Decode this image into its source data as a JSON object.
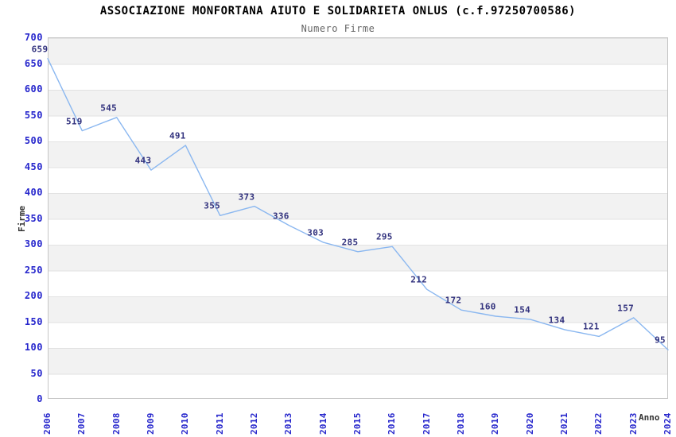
{
  "chart_data": {
    "type": "line",
    "title": "ASSOCIAZIONE MONFORTANA AIUTO E SOLIDARIETA ONLUS (c.f.97250700586)",
    "subtitle": "Numero Firme",
    "xlabel": "Anno",
    "ylabel": "Firme",
    "categories": [
      "2006",
      "2007",
      "2008",
      "2009",
      "2010",
      "2011",
      "2012",
      "2013",
      "2014",
      "2015",
      "2016",
      "2017",
      "2018",
      "2019",
      "2020",
      "2021",
      "2022",
      "2023",
      "2024"
    ],
    "values": [
      659,
      519,
      545,
      443,
      491,
      355,
      373,
      336,
      303,
      285,
      295,
      212,
      172,
      160,
      154,
      134,
      121,
      157,
      95
    ],
    "ylim": [
      0,
      700
    ],
    "ytick_step": 50,
    "grid": "horizontal-bands-alternating",
    "legend": "none",
    "data_labels_shown": true,
    "colors": {
      "line": "#8ab7f0",
      "tick_label": "#2626cc",
      "data_label": "#31317d",
      "band_gray": "#f2f2f2",
      "gridline": "#e2e2e2",
      "plot_border": "#c6c6c6",
      "axis_title": "#333333",
      "title": "#000000",
      "subtitle": "#666666"
    }
  }
}
